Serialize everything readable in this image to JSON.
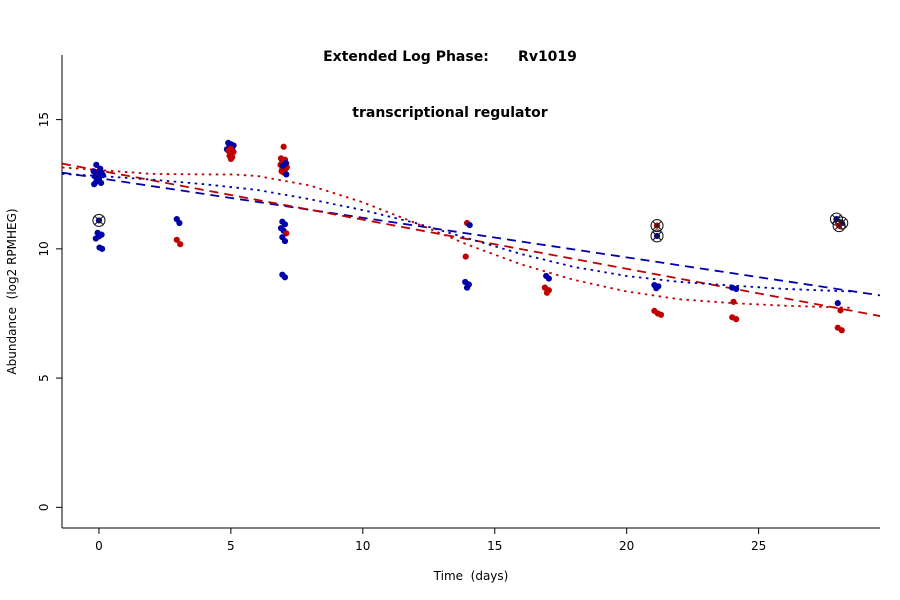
{
  "title": {
    "line1": "Extended Log Phase:      Rv1019",
    "line2": "transcriptional regulator"
  },
  "chart_data": {
    "type": "scatter",
    "title": "Extended Log Phase:      Rv1019",
    "subtitle": "transcriptional regulator",
    "xlabel": "Time  (days)",
    "ylabel": "Abundance  (log2 RPMHEG)",
    "xlim": [
      -1.4,
      29.6
    ],
    "ylim": [
      -0.8,
      17.5
    ],
    "xticks": [
      0,
      5,
      10,
      15,
      20,
      25
    ],
    "yticks": [
      0,
      5,
      10,
      15
    ],
    "grid": false,
    "legend": "none",
    "colors": {
      "red": "#c00000",
      "blue": "#0000a8",
      "flag": "#1a1a1a"
    },
    "point_format": [
      "x",
      "y",
      "series(b=blue,r=red)",
      "flagged(0/1)"
    ],
    "points": [
      [
        -0.1,
        13.25,
        "b",
        0
      ],
      [
        0.05,
        13.1,
        "b",
        0
      ],
      [
        -0.2,
        13.0,
        "b",
        0
      ],
      [
        0.1,
        12.95,
        "b",
        0
      ],
      [
        -0.05,
        12.9,
        "b",
        0
      ],
      [
        0.15,
        12.85,
        "b",
        0
      ],
      [
        -0.15,
        12.8,
        "b",
        0
      ],
      [
        0.0,
        12.7,
        "b",
        0
      ],
      [
        -0.1,
        12.6,
        "b",
        0
      ],
      [
        0.08,
        12.55,
        "b",
        0
      ],
      [
        -0.18,
        12.5,
        "b",
        0
      ],
      [
        0.0,
        11.1,
        "b",
        1
      ],
      [
        -0.05,
        10.62,
        "b",
        0
      ],
      [
        0.1,
        10.55,
        "b",
        0
      ],
      [
        0.0,
        10.48,
        "b",
        0
      ],
      [
        -0.12,
        10.4,
        "b",
        0
      ],
      [
        0.02,
        10.05,
        "b",
        0
      ],
      [
        0.12,
        10.0,
        "b",
        0
      ],
      [
        2.95,
        11.15,
        "b",
        0
      ],
      [
        3.05,
        11.0,
        "b",
        0
      ],
      [
        2.95,
        10.35,
        "r",
        0
      ],
      [
        3.08,
        10.18,
        "r",
        0
      ],
      [
        4.9,
        14.1,
        "b",
        0
      ],
      [
        5.0,
        14.05,
        "b",
        0
      ],
      [
        5.1,
        14.0,
        "b",
        0
      ],
      [
        4.95,
        13.95,
        "b",
        0
      ],
      [
        5.05,
        13.9,
        "b",
        0
      ],
      [
        4.85,
        13.85,
        "b",
        0
      ],
      [
        5.0,
        13.88,
        "r",
        0
      ],
      [
        4.9,
        13.8,
        "r",
        0
      ],
      [
        5.1,
        13.75,
        "r",
        0
      ],
      [
        5.0,
        13.68,
        "r",
        0
      ],
      [
        4.95,
        13.6,
        "r",
        0
      ],
      [
        5.05,
        13.55,
        "r",
        0
      ],
      [
        5.0,
        13.48,
        "r",
        0
      ],
      [
        7.0,
        13.95,
        "r",
        0
      ],
      [
        6.9,
        13.5,
        "r",
        0
      ],
      [
        7.05,
        13.45,
        "r",
        0
      ],
      [
        6.95,
        13.38,
        "r",
        0
      ],
      [
        7.1,
        13.3,
        "r",
        0
      ],
      [
        6.88,
        13.25,
        "r",
        0
      ],
      [
        7.0,
        13.2,
        "r",
        0
      ],
      [
        7.12,
        13.15,
        "r",
        0
      ],
      [
        6.95,
        13.1,
        "r",
        0
      ],
      [
        7.05,
        13.05,
        "r",
        0
      ],
      [
        6.92,
        13.0,
        "r",
        0
      ],
      [
        7.0,
        12.95,
        "r",
        0
      ],
      [
        7.08,
        13.32,
        "b",
        0
      ],
      [
        6.97,
        13.22,
        "b",
        0
      ],
      [
        7.1,
        12.88,
        "b",
        0
      ],
      [
        6.95,
        11.05,
        "b",
        0
      ],
      [
        7.05,
        10.95,
        "b",
        0
      ],
      [
        6.9,
        10.8,
        "b",
        0
      ],
      [
        7.0,
        10.7,
        "b",
        0
      ],
      [
        7.1,
        10.6,
        "r",
        0
      ],
      [
        6.95,
        10.45,
        "b",
        0
      ],
      [
        7.05,
        10.3,
        "b",
        0
      ],
      [
        6.95,
        9.0,
        "b",
        0
      ],
      [
        7.05,
        8.9,
        "b",
        0
      ],
      [
        13.95,
        11.0,
        "r",
        0
      ],
      [
        14.05,
        10.92,
        "b",
        0
      ],
      [
        13.9,
        9.7,
        "r",
        0
      ],
      [
        13.88,
        8.72,
        "b",
        0
      ],
      [
        14.02,
        8.62,
        "b",
        0
      ],
      [
        13.95,
        8.5,
        "b",
        0
      ],
      [
        16.95,
        8.95,
        "b",
        0
      ],
      [
        17.05,
        8.85,
        "b",
        0
      ],
      [
        16.9,
        8.5,
        "r",
        0
      ],
      [
        17.05,
        8.4,
        "r",
        0
      ],
      [
        16.98,
        8.3,
        "r",
        0
      ],
      [
        21.15,
        10.9,
        "r",
        1
      ],
      [
        21.15,
        10.5,
        "b",
        1
      ],
      [
        21.05,
        8.6,
        "b",
        0
      ],
      [
        21.2,
        8.55,
        "b",
        0
      ],
      [
        21.12,
        8.48,
        "b",
        0
      ],
      [
        21.05,
        7.6,
        "r",
        0
      ],
      [
        21.18,
        7.5,
        "r",
        0
      ],
      [
        21.3,
        7.45,
        "r",
        0
      ],
      [
        24.0,
        8.5,
        "b",
        0
      ],
      [
        24.15,
        8.45,
        "b",
        0
      ],
      [
        24.05,
        7.95,
        "r",
        0
      ],
      [
        24.0,
        7.35,
        "r",
        0
      ],
      [
        24.15,
        7.28,
        "r",
        0
      ],
      [
        27.95,
        11.15,
        "b",
        1
      ],
      [
        28.15,
        11.0,
        "b",
        1
      ],
      [
        28.05,
        10.9,
        "r",
        1
      ],
      [
        28.0,
        7.9,
        "b",
        0
      ],
      [
        28.1,
        7.62,
        "r",
        0
      ],
      [
        28.0,
        6.95,
        "r",
        0
      ],
      [
        28.15,
        6.85,
        "r",
        0
      ]
    ],
    "curves": [
      {
        "name": "blue-linear-fit",
        "series": "blue",
        "dash": "9,6",
        "x": [
          -1.4,
          29.6
        ],
        "y": [
          12.95,
          8.2
        ]
      },
      {
        "name": "red-linear-fit",
        "series": "red",
        "dash": "9,6",
        "x": [
          -1.4,
          29.6
        ],
        "y": [
          13.3,
          7.4
        ]
      },
      {
        "name": "blue-smooth-fit",
        "series": "blue",
        "dash": "2.5,4.5",
        "x": [
          -1.4,
          0,
          2,
          4,
          6,
          8,
          10,
          12,
          14,
          16,
          18,
          20,
          22,
          24,
          26,
          28.5
        ],
        "y": [
          12.9,
          12.82,
          12.68,
          12.5,
          12.28,
          11.92,
          11.5,
          11.0,
          10.4,
          9.8,
          9.3,
          8.95,
          8.72,
          8.58,
          8.45,
          8.35
        ]
      },
      {
        "name": "red-smooth-fit",
        "series": "red",
        "dash": "2.5,4.5",
        "x": [
          -1.4,
          0,
          2,
          4,
          5,
          6,
          8,
          10,
          12,
          14,
          16,
          18,
          20,
          22,
          24,
          26,
          28.5
        ],
        "y": [
          13.15,
          13.05,
          12.9,
          12.88,
          12.88,
          12.82,
          12.45,
          11.8,
          11.0,
          10.15,
          9.4,
          8.8,
          8.35,
          8.05,
          7.9,
          7.8,
          7.72
        ]
      }
    ]
  }
}
